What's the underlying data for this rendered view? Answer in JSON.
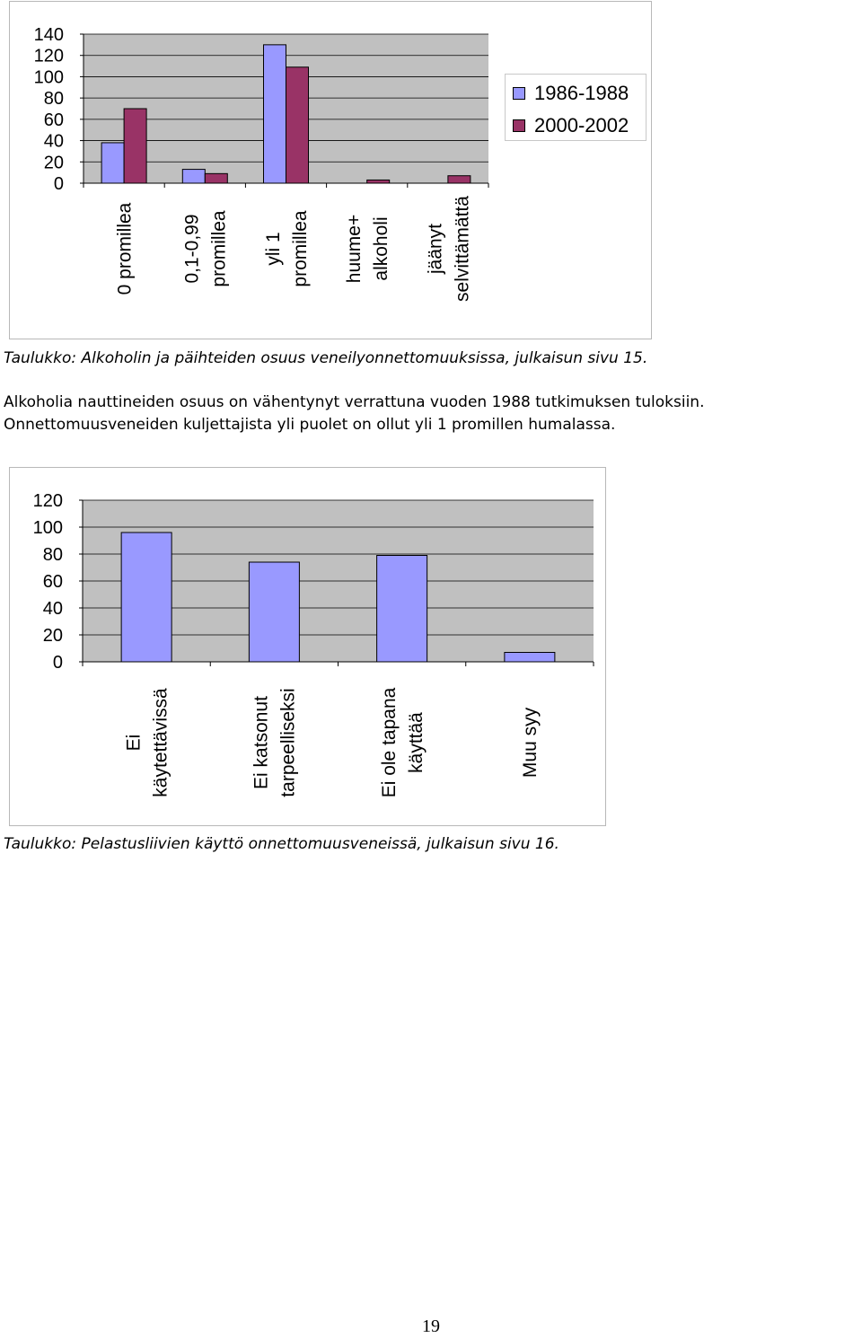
{
  "chart1": {
    "caption": "Taulukko: Alkoholin ja päihteiden osuus veneilyonnettomuuksissa, julkaisun sivu 15."
  },
  "paragraph": {
    "line1": "Alkoholia nauttineiden osuus on vähentynyt verrattuna vuoden 1988 tutkimuksen tuloksiin.",
    "line2": "Onnettomuusveneiden kuljettajista yli puolet on ollut yli 1 promillen humalassa."
  },
  "chart2": {
    "caption": "Taulukko: Pelastusliivien käyttö onnettomuusveneissä, julkaisun sivu 16."
  },
  "page_number": "19",
  "colors": {
    "series_a": "#9999ff",
    "series_b": "#993366",
    "plot_bg": "#c0c0c0",
    "gridline": "#000000"
  },
  "chart_data": [
    {
      "type": "bar",
      "categories": [
        [
          "0 promillea"
        ],
        [
          "0,1-0,99",
          "promillea"
        ],
        [
          "yli 1",
          "promillea"
        ],
        [
          "huume+",
          "alkoholi"
        ],
        [
          "jäänyt",
          "selvittämättä"
        ]
      ],
      "series": [
        {
          "name": "1986-1988",
          "values": [
            38,
            13,
            130,
            0,
            0
          ]
        },
        {
          "name": "2000-2002",
          "values": [
            70,
            9,
            109,
            3,
            7
          ]
        }
      ],
      "ylim": [
        0,
        140
      ],
      "yticks": [
        "0",
        "20",
        "40",
        "60",
        "80",
        "100",
        "120",
        "140"
      ],
      "grid": true,
      "legend": "right"
    },
    {
      "type": "bar",
      "categories": [
        [
          "Ei",
          "käytettävissä"
        ],
        [
          "Ei katsonut",
          "tarpeelliseksi"
        ],
        [
          "Ei ole tapana",
          "käyttää"
        ],
        [
          "Muu syy"
        ]
      ],
      "series": [
        {
          "values": [
            96,
            74,
            79,
            7
          ]
        }
      ],
      "ylim": [
        0,
        120
      ],
      "yticks": [
        "0",
        "20",
        "40",
        "60",
        "80",
        "100",
        "120"
      ],
      "grid": true
    }
  ]
}
